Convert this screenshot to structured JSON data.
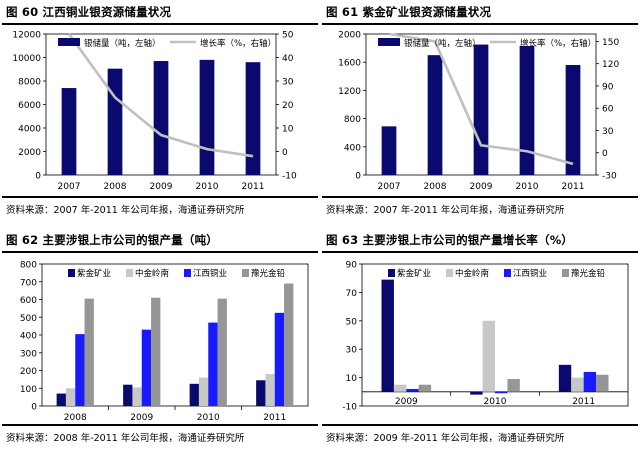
{
  "panels": [
    {
      "title": "图 60 江西铜业银资源储量状况",
      "source": "资料来源：2007 年-2011 年公司年报，海通证券研究所"
    },
    {
      "title": "图 61 紫金矿业银资源储量状况",
      "source": "资料来源：2007 年-2011 年公司年报，海通证券研究所"
    },
    {
      "title": "图 62 主要涉银上市公司的银产量（吨）",
      "source": "资料来源：2008 年-2011 年公司年报，海通证券研究所"
    },
    {
      "title": "图 63 主要涉银上市公司的银产量增长率（%）",
      "source": "资料来源：2009 年-2011 年公司年报，海通证券研究所"
    }
  ],
  "chart_data": [
    {
      "type": "bar+line",
      "categories": [
        "2007",
        "2008",
        "2009",
        "2010",
        "2011"
      ],
      "series": [
        {
          "name": "银储量（吨，左轴）",
          "type": "bar",
          "axis": "left",
          "color": "#0a0a6e",
          "values": [
            7400,
            9050,
            9700,
            9800,
            9600
          ]
        },
        {
          "name": "增长率（%，右轴）",
          "type": "line",
          "axis": "right",
          "color": "#c0c0c0",
          "values": [
            null,
            23,
            7,
            1,
            -2
          ]
        }
      ],
      "ylim_left": [
        0,
        12000
      ],
      "yticks_left": [
        0,
        2000,
        4000,
        6000,
        8000,
        10000,
        12000
      ],
      "ylim_right": [
        -10,
        50
      ],
      "yticks_right": [
        -10,
        0,
        10,
        20,
        30,
        40,
        50
      ],
      "line_start_top": true,
      "legend": "top"
    },
    {
      "type": "bar+line",
      "categories": [
        "2007",
        "2008",
        "2009",
        "2010",
        "2011"
      ],
      "series": [
        {
          "name": "银储量（吨，左轴）",
          "type": "bar",
          "axis": "left",
          "color": "#0a0a6e",
          "values": [
            690,
            1700,
            1850,
            1830,
            1560
          ]
        },
        {
          "name": "增长率（%，右轴）",
          "type": "line",
          "axis": "right",
          "color": "#c0c0c0",
          "values": [
            null,
            150,
            10,
            2,
            -15
          ]
        }
      ],
      "ylim_left": [
        0,
        2000
      ],
      "yticks_left": [
        0,
        400,
        800,
        1200,
        1600,
        2000
      ],
      "ylim_right": [
        -30,
        160
      ],
      "yticks_right": [
        -30,
        0,
        30,
        60,
        90,
        120,
        150
      ],
      "line_start_top": true,
      "legend": "top"
    },
    {
      "type": "bar",
      "categories": [
        "2008",
        "2009",
        "2010",
        "2011"
      ],
      "series": [
        {
          "name": "紫金矿业",
          "color": "#0a0a6e",
          "values": [
            70,
            120,
            125,
            145
          ]
        },
        {
          "name": "中金岭南",
          "color": "#c8c8c8",
          "values": [
            100,
            105,
            160,
            180
          ]
        },
        {
          "name": "江西铜业",
          "color": "#1a1aff",
          "values": [
            405,
            430,
            470,
            525
          ]
        },
        {
          "name": "豫光金铅",
          "color": "#969696",
          "values": [
            605,
            610,
            605,
            690
          ]
        }
      ],
      "ylim": [
        0,
        800
      ],
      "yticks": [
        0,
        100,
        200,
        300,
        400,
        500,
        600,
        700,
        800
      ],
      "legend": "top"
    },
    {
      "type": "bar",
      "categories": [
        "2009",
        "2010",
        "2011"
      ],
      "series": [
        {
          "name": "紫金矿业",
          "color": "#0a0a6e",
          "values": [
            79,
            -2,
            19
          ]
        },
        {
          "name": "中金岭南",
          "color": "#c8c8c8",
          "values": [
            5,
            50,
            10
          ]
        },
        {
          "name": "江西铜业",
          "color": "#1a1aff",
          "values": [
            2,
            -1,
            14
          ]
        },
        {
          "name": "豫光金铅",
          "color": "#969696",
          "values": [
            5,
            9,
            12
          ]
        }
      ],
      "ylim": [
        -10,
        90
      ],
      "yticks": [
        -10,
        10,
        30,
        50,
        70,
        90
      ],
      "legend": "top"
    }
  ]
}
